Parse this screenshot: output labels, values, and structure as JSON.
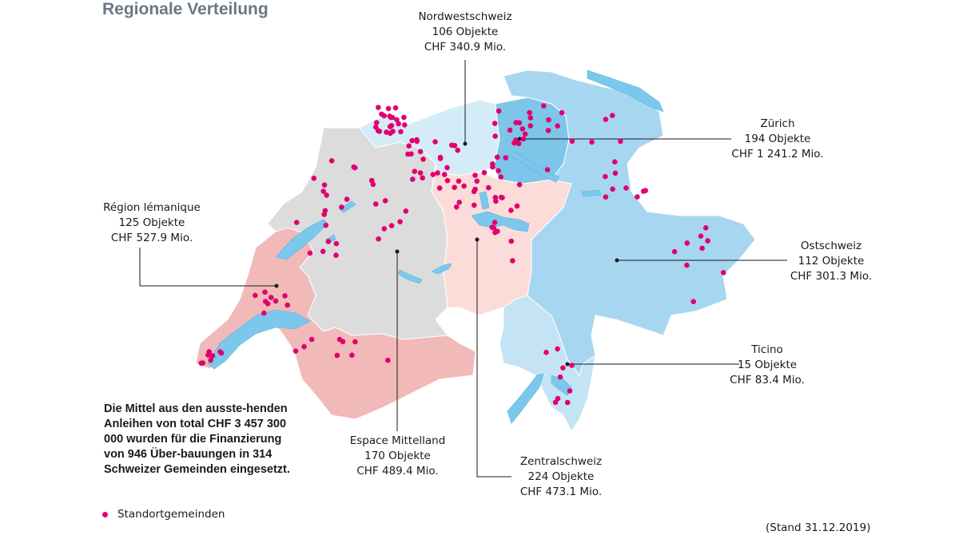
{
  "title": "Regionale Verteilung",
  "regions": {
    "nordwestschweiz": {
      "name": "Nordwestschweiz",
      "objects": "106 Objekte",
      "amount": "CHF 340.9 Mio."
    },
    "zuerich": {
      "name": "Zürich",
      "objects": "194 Objekte",
      "amount": "CHF 1 241.2 Mio."
    },
    "lemanique": {
      "name": "Région lémanique",
      "objects": "125 Objekte",
      "amount": "CHF 527.9 Mio."
    },
    "ostschweiz": {
      "name": "Ostschweiz",
      "objects": "112 Objekte",
      "amount": "CHF 301.3 Mio."
    },
    "ticino": {
      "name": "Ticino",
      "objects": "15 Objekte",
      "amount": "CHF 83.4 Mio."
    },
    "mittelland": {
      "name": "Espace Mittelland",
      "objects": "170 Objekte",
      "amount": "CHF 489.4 Mio."
    },
    "zentralschweiz": {
      "name": "Zentralschweiz",
      "objects": "224 Objekte",
      "amount": "CHF 473.1 Mio."
    }
  },
  "summary": "Die Mittel aus den ausste-henden Anleihen von total CHF 3 457 300 000 wurden für die Finanzierung von 946 Über-bauungen in 314 Schweizer Gemeinden eingesetzt.",
  "legend": {
    "label": "Standortgemeinden",
    "marker_color": "#e0006f"
  },
  "stand": "(Stand 31.12.2019)",
  "colors": {
    "mittelland": "#dcdcdc",
    "lemanique": "#f2b9b9",
    "zentralschweiz": "#fbdcd8",
    "nordwestschweiz": "#d4ecf7",
    "zuerich": "#7ec5ea",
    "ostschweiz": "#a7d7f0",
    "ticino": "#c4e4f5",
    "lakes": "#7cc8ec",
    "points": "#e0006f",
    "leader": "#1a1a1a"
  }
}
